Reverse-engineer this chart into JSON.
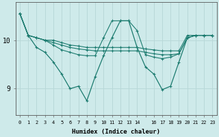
{
  "xlabel": "Humidex (Indice chaleur)",
  "bg_color": "#ceeaea",
  "line_color": "#1a7a6e",
  "grid_color": "#b8d8d8",
  "lines": [
    [
      10.55,
      10.1,
      10.05,
      10.0,
      10.0,
      9.95,
      9.9,
      9.88,
      9.85,
      9.85,
      9.85,
      9.85,
      9.85,
      9.85,
      9.85,
      9.82,
      9.8,
      9.78,
      9.78,
      9.78,
      10.1,
      10.1,
      10.1,
      10.1
    ],
    [
      10.55,
      10.1,
      10.05,
      10.0,
      9.95,
      9.9,
      9.85,
      9.82,
      9.8,
      9.78,
      9.78,
      9.78,
      9.78,
      9.78,
      9.78,
      9.75,
      9.72,
      9.7,
      9.7,
      9.72,
      10.05,
      10.1,
      10.1,
      10.1
    ],
    [
      10.55,
      10.1,
      10.05,
      10.0,
      9.9,
      9.8,
      9.75,
      9.7,
      9.68,
      9.68,
      10.05,
      10.4,
      10.4,
      10.4,
      10.2,
      9.7,
      9.65,
      9.62,
      9.65,
      9.72,
      10.05,
      10.1,
      10.1,
      10.1
    ],
    [
      10.55,
      10.1,
      9.85,
      9.75,
      9.55,
      9.3,
      9.0,
      9.05,
      8.75,
      9.25,
      9.68,
      10.05,
      10.4,
      10.4,
      9.85,
      9.45,
      9.3,
      8.98,
      9.05,
      9.55,
      10.05,
      10.1,
      10.1,
      10.1
    ]
  ],
  "yticks": [
    9,
    10
  ],
  "ylim": [
    8.45,
    10.78
  ],
  "xlim": [
    -0.5,
    23.5
  ]
}
